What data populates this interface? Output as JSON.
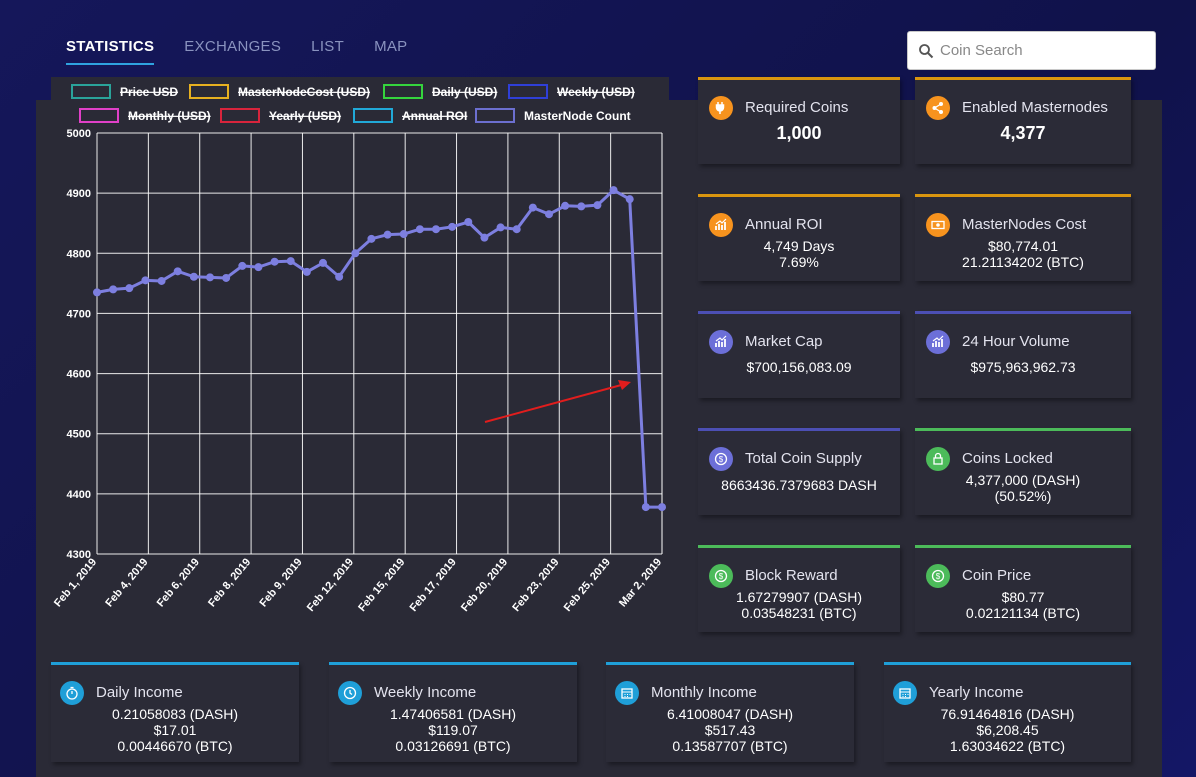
{
  "nav": {
    "tabs": [
      {
        "label": "STATISTICS",
        "active": true
      },
      {
        "label": "EXCHANGES",
        "active": false
      },
      {
        "label": "LIST",
        "active": false
      },
      {
        "label": "MAP",
        "active": false
      }
    ]
  },
  "search": {
    "placeholder": "Coin Search"
  },
  "stats": {
    "required_coins": {
      "title": "Required Coins",
      "value": "1,000"
    },
    "enabled_masternodes": {
      "title": "Enabled Masternodes",
      "value": "4,377"
    },
    "annual_roi": {
      "title": "Annual ROI",
      "line1": "4,749 Days",
      "line2": "7.69%"
    },
    "masternodes_cost": {
      "title": "MasterNodes Cost",
      "line1": "$80,774.01",
      "line2": "21.21134202 (BTC)"
    },
    "market_cap": {
      "title": "Market Cap",
      "value": "$700,156,083.09"
    },
    "volume_24h": {
      "title": "24 Hour Volume",
      "value": "$975,963,962.73"
    },
    "total_supply": {
      "title": "Total Coin Supply",
      "value": "8663436.7379683 DASH"
    },
    "coins_locked": {
      "title": "Coins Locked",
      "line1": "4,377,000 (DASH)",
      "line2": "(50.52%)"
    },
    "block_reward": {
      "title": "Block Reward",
      "line1": "1.67279907 (DASH)",
      "line2": "0.03548231 (BTC)"
    },
    "coin_price": {
      "title": "Coin Price",
      "line1": "$80.77",
      "line2": "0.02121134 (BTC)"
    }
  },
  "income": {
    "daily": {
      "title": "Daily Income",
      "dash": "0.21058083 (DASH)",
      "usd": "$17.01",
      "btc": "0.00446670 (BTC)"
    },
    "weekly": {
      "title": "Weekly Income",
      "dash": "1.47406581 (DASH)",
      "usd": "$119.07",
      "btc": "0.03126691 (BTC)"
    },
    "monthly": {
      "title": "Monthly Income",
      "dash": "6.41008047 (DASH)",
      "usd": "$517.43",
      "btc": "0.13587707 (BTC)"
    },
    "yearly": {
      "title": "Yearly Income",
      "dash": "76.91464816 (DASH)",
      "usd": "$6,208.45",
      "btc": "1.63034622 (BTC)"
    }
  },
  "colors": {
    "orange": "#f7931e",
    "orange_bar": "#d9950f",
    "purple": "#6c6fd8",
    "purple_bar": "#4c4fb4",
    "green": "#4cbb5a",
    "green_bar": "#4cbb5a",
    "blue": "#1f9fd8",
    "blue_bar": "#1f9fd8",
    "line": "#7d7fe0",
    "annotation_arrow": "#e11d1d"
  },
  "chart_data": {
    "type": "line",
    "legend": [
      {
        "name": "Price USD",
        "color": "#2aa39a",
        "hidden": true
      },
      {
        "name": "MasterNodeCost (USD)",
        "color": "#e6b020",
        "hidden": true
      },
      {
        "name": "Daily (USD)",
        "color": "#35d43d",
        "hidden": true
      },
      {
        "name": "Weekly (USD)",
        "color": "#2f3fd8",
        "hidden": true
      },
      {
        "name": "Monthly (USD)",
        "color": "#e040c8",
        "hidden": true
      },
      {
        "name": "Yearly (USD)",
        "color": "#d8243c",
        "hidden": true
      },
      {
        "name": "Annual ROI",
        "color": "#21a9d8",
        "hidden": true
      },
      {
        "name": "MasterNode Count",
        "color": "#6c6fd0",
        "hidden": false
      }
    ],
    "x_ticks": [
      "Feb 1, 2019",
      "Feb 4, 2019",
      "Feb 6, 2019",
      "Feb 8, 2019",
      "Feb 9, 2019",
      "Feb 12, 2019",
      "Feb 15, 2019",
      "Feb 17, 2019",
      "Feb 20, 2019",
      "Feb 23, 2019",
      "Feb 25, 2019",
      "Mar 2, 2019"
    ],
    "y_ticks": [
      "5000",
      "4900",
      "4800",
      "4700",
      "4600",
      "4500",
      "4400",
      "4300"
    ],
    "ylim": [
      4300,
      5000
    ],
    "series": [
      {
        "name": "MasterNode Count",
        "values": [
          4735,
          4740,
          4742,
          4755,
          4754,
          4770,
          4761,
          4760,
          4759,
          4779,
          4777,
          4786,
          4787,
          4769,
          4784,
          4761,
          4800,
          4824,
          4831,
          4832,
          4840,
          4840,
          4844,
          4852,
          4826,
          4843,
          4840,
          4876,
          4865,
          4879,
          4878,
          4880,
          4905,
          4890,
          4378,
          4378
        ]
      }
    ],
    "annotation": "red arrow pointing to sharp drop"
  }
}
